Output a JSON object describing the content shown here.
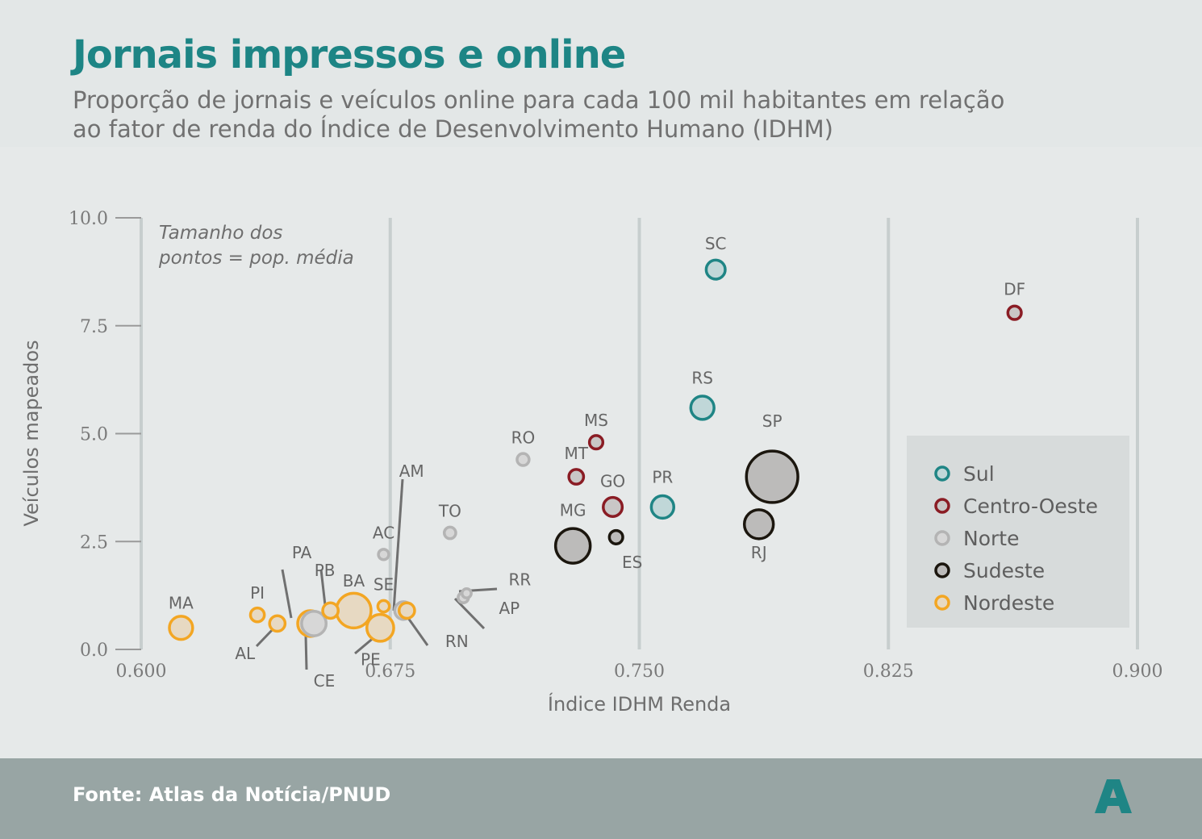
{
  "title": "Jornais impressos e online",
  "subtitle": "Proporção de jornais e veículos online para cada 100 mil habitantes em relação ao fator de renda do Índice de Desenvolvimento Humano (IDHM)",
  "footer": {
    "source": "Fonte: Atlas da Notícia/PNUD",
    "logo": "A"
  },
  "colors": {
    "Sul": "#1f8585",
    "Centro-Oeste": "#8a1c24",
    "Norte": "#b4b4b4",
    "Sudeste": "#1b160e",
    "Nordeste": "#f3a623"
  },
  "fills": {
    "Sul": "#c0d7d8",
    "Centro-Oeste": "#c9c7c6",
    "Norte": "#d7d7d7",
    "Sudeste": "#bcbbba",
    "Nordeste": "#e7d9c2"
  },
  "chart_data": {
    "type": "scatter",
    "title": "Jornais impressos e online",
    "xlabel": "Índice IDHM Renda",
    "ylabel": "Veículos mapeados",
    "xlim": [
      0.6,
      0.9
    ],
    "ylim": [
      0,
      10
    ],
    "xticks": [
      "0.600",
      "0.675",
      "0.750",
      "0.825",
      "0.900"
    ],
    "yticks": [
      "0.0",
      "2.5",
      "5.0",
      "7.5",
      "10.0"
    ],
    "grid": "vertical",
    "note": "Tamanho dos pontos = pop. média",
    "legend_position": "right",
    "legend": [
      "Sul",
      "Centro-Oeste",
      "Norte",
      "Sudeste",
      "Nordeste"
    ],
    "points": [
      {
        "label": "SC",
        "x": 0.773,
        "y": 8.8,
        "region": "Sul",
        "size": 3
      },
      {
        "label": "DF",
        "x": 0.863,
        "y": 7.8,
        "region": "Centro-Oeste",
        "size": 1.5
      },
      {
        "label": "RS",
        "x": 0.769,
        "y": 5.6,
        "region": "Sul",
        "size": 4.5
      },
      {
        "label": "PR",
        "x": 0.757,
        "y": 3.3,
        "region": "Sul",
        "size": 4.2
      },
      {
        "label": "SP",
        "x": 0.79,
        "y": 4.0,
        "region": "Sudeste",
        "size": 22
      },
      {
        "label": "RJ",
        "x": 0.786,
        "y": 2.9,
        "region": "Sudeste",
        "size": 7
      },
      {
        "label": "MG",
        "x": 0.73,
        "y": 2.4,
        "region": "Sudeste",
        "size": 10
      },
      {
        "label": "ES",
        "x": 0.743,
        "y": 2.6,
        "region": "Sudeste",
        "size": 1.5
      },
      {
        "label": "MS",
        "x": 0.737,
        "y": 4.8,
        "region": "Centro-Oeste",
        "size": 1.5
      },
      {
        "label": "MT",
        "x": 0.731,
        "y": 4.0,
        "region": "Centro-Oeste",
        "size": 1.8
      },
      {
        "label": "GO",
        "x": 0.742,
        "y": 3.3,
        "region": "Centro-Oeste",
        "size": 3
      },
      {
        "label": "RO",
        "x": 0.715,
        "y": 4.4,
        "region": "Norte",
        "size": 1.2
      },
      {
        "label": "TO",
        "x": 0.693,
        "y": 2.7,
        "region": "Norte",
        "size": 1.1
      },
      {
        "label": "AC",
        "x": 0.673,
        "y": 2.2,
        "region": "Norte",
        "size": 0.9
      },
      {
        "label": "AM",
        "x": 0.679,
        "y": 0.9,
        "region": "Norte",
        "size": 2.6
      },
      {
        "label": "RR",
        "x": 0.698,
        "y": 1.3,
        "region": "Norte",
        "size": 0.7
      },
      {
        "label": "AP",
        "x": 0.697,
        "y": 1.2,
        "region": "Norte",
        "size": 0.9
      },
      {
        "label": "PA",
        "x": 0.652,
        "y": 0.6,
        "region": "Norte",
        "size": 5
      },
      {
        "label": "MA",
        "x": 0.612,
        "y": 0.5,
        "region": "Nordeste",
        "size": 4.5
      },
      {
        "label": "PI",
        "x": 0.635,
        "y": 0.8,
        "region": "Nordeste",
        "size": 1.6
      },
      {
        "label": "AL",
        "x": 0.641,
        "y": 0.6,
        "region": "Nordeste",
        "size": 2
      },
      {
        "label": "CE",
        "x": 0.651,
        "y": 0.6,
        "region": "Nordeste",
        "size": 5.5
      },
      {
        "label": "PB",
        "x": 0.657,
        "y": 0.9,
        "region": "Nordeste",
        "size": 2
      },
      {
        "label": "BA",
        "x": 0.664,
        "y": 0.9,
        "region": "Nordeste",
        "size": 10
      },
      {
        "label": "SE",
        "x": 0.673,
        "y": 1.0,
        "region": "Nordeste",
        "size": 1.1
      },
      {
        "label": "PE",
        "x": 0.672,
        "y": 0.5,
        "region": "Nordeste",
        "size": 6
      },
      {
        "label": "RN",
        "x": 0.68,
        "y": 0.9,
        "region": "Nordeste",
        "size": 2
      }
    ]
  }
}
